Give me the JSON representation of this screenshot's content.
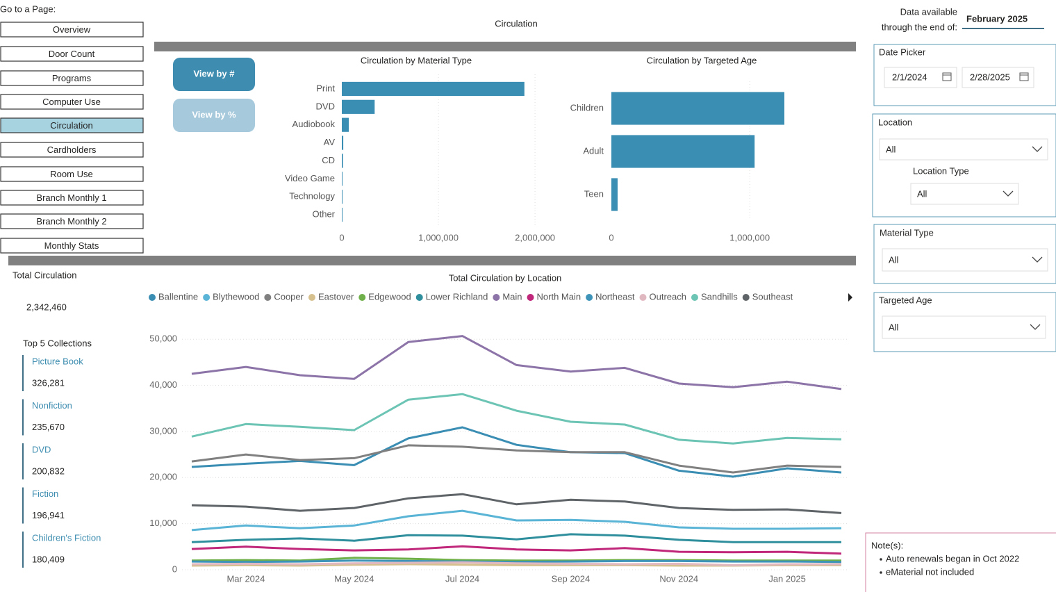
{
  "nav": {
    "title": "Go to a Page:",
    "pages": [
      "Overview",
      "Door Count",
      "Programs",
      "Computer Use",
      "Circulation",
      "Cardholders",
      "Room Use",
      "Branch Monthly 1",
      "Branch Monthly 2",
      "Monthly Stats"
    ],
    "active": 4
  },
  "header": {
    "title": "Circulation",
    "availability_label": [
      "Data available",
      "through the end of:"
    ],
    "availability_value": "February 2025"
  },
  "toggles": [
    "View by #",
    "View by %"
  ],
  "filters": {
    "date_picker": {
      "title": "Date Picker",
      "start": "2/1/2024",
      "end": "2/28/2025"
    },
    "location": {
      "title": "Location",
      "value": "All",
      "type_title": "Location Type",
      "type_value": "All"
    },
    "material_type": {
      "title": "Material Type",
      "value": "All"
    },
    "targeted_age": {
      "title": "Targeted Age",
      "value": "All"
    }
  },
  "kpi": {
    "title": "Total Circulation",
    "value": "2,342,460"
  },
  "top_collections": {
    "title": "Top 5 Collections",
    "items": [
      {
        "name": "Picture Book",
        "value": "326,281"
      },
      {
        "name": "Nonfiction",
        "value": "235,670"
      },
      {
        "name": "DVD",
        "value": "200,832"
      },
      {
        "name": "Fiction",
        "value": "196,941"
      },
      {
        "name": "Children's Fiction",
        "value": "180,409"
      }
    ]
  },
  "notes": {
    "title": "Note(s):",
    "items": [
      "Auto renewals began in Oct 2022",
      "eMaterial not included"
    ]
  },
  "chart_data": [
    {
      "type": "bar",
      "orientation": "horizontal",
      "title": "Circulation by Material Type",
      "color": "#3a8db3",
      "categories": [
        "Print",
        "DVD",
        "Audiobook",
        "AV",
        "CD",
        "Video Game",
        "Technology",
        "Other"
      ],
      "values": [
        1890000,
        340000,
        72000,
        15000,
        12000,
        5000,
        3000,
        2000
      ],
      "xlim": [
        0,
        2100000
      ],
      "xticks": [
        0,
        {
          "value": 1000000,
          "label": "1,000,000"
        },
        {
          "value": 2000000,
          "label": "2,000,000"
        }
      ],
      "grid": true
    },
    {
      "type": "bar",
      "orientation": "horizontal",
      "title": "Circulation by Targeted Age",
      "color": "#3a8db3",
      "categories": [
        "Children",
        "Adult",
        "Teen"
      ],
      "values": [
        1250000,
        1035000,
        45000
      ],
      "xlim": [
        0,
        1260000
      ],
      "xticks": [
        0,
        {
          "value": 1000000,
          "label": "1,000,000"
        }
      ],
      "grid": true
    },
    {
      "type": "line",
      "title": "Total Circulation by Location",
      "categories": [
        null,
        "Mar 2024",
        null,
        "May 2024",
        null,
        "Jul 2024",
        null,
        "Sep 2024",
        null,
        "Nov 2024",
        null,
        "Jan 2025",
        null
      ],
      "ylim": [
        0,
        52000
      ],
      "yticks": [
        0,
        {
          "value": 10000,
          "label": "10,000"
        },
        {
          "value": 20000,
          "label": "20,000"
        },
        {
          "value": 30000,
          "label": "30,000"
        },
        {
          "value": 40000,
          "label": "40,000"
        },
        {
          "value": 50000,
          "label": "50,000"
        }
      ],
      "grid": true,
      "series": [
        {
          "name": "Ballentine",
          "color": "#3a8db3",
          "values": [
            22300,
            23000,
            23600,
            22700,
            28500,
            30900,
            27100,
            25500,
            25300,
            21500,
            20200,
            22000,
            21100
          ]
        },
        {
          "name": "Blythewood",
          "color": "#5ab4d6",
          "values": [
            8600,
            9600,
            9000,
            9600,
            11600,
            12800,
            10700,
            10800,
            10400,
            9200,
            8900,
            8900,
            9000
          ]
        },
        {
          "name": "Cooper",
          "color": "#808080",
          "values": [
            23500,
            25000,
            23800,
            24200,
            27000,
            26700,
            25900,
            25500,
            25500,
            22600,
            21100,
            22600,
            22300
          ]
        },
        {
          "name": "Eastover",
          "color": "#d5c08e",
          "values": [
            900,
            1000,
            900,
            1100,
            1200,
            1100,
            1000,
            1000,
            1000,
            900,
            900,
            1000,
            1000
          ]
        },
        {
          "name": "Edgewood",
          "color": "#6fb04a",
          "values": [
            2000,
            2100,
            2000,
            2600,
            2400,
            2100,
            2000,
            2000,
            2100,
            2100,
            2000,
            2000,
            2000
          ]
        },
        {
          "name": "Lower Richland",
          "color": "#2f8f9d",
          "values": [
            6000,
            6500,
            6800,
            6300,
            7500,
            7400,
            6600,
            7700,
            7400,
            6500,
            6000,
            6000,
            6000
          ]
        },
        {
          "name": "Main",
          "color": "#8d74a8",
          "values": [
            42500,
            44000,
            42200,
            41400,
            49400,
            50700,
            44400,
            43000,
            43800,
            40400,
            39600,
            40800,
            39200
          ]
        },
        {
          "name": "North Main",
          "color": "#c0267a",
          "values": [
            4500,
            5000,
            4500,
            4200,
            4400,
            5100,
            4400,
            4200,
            4700,
            3900,
            3800,
            3900,
            3500
          ]
        },
        {
          "name": "Northeast",
          "color": "#3d94b8",
          "values": [
            1800,
            1700,
            1800,
            2000,
            1900,
            1800,
            1700,
            1800,
            1900,
            1900,
            1800,
            1800,
            1700
          ]
        },
        {
          "name": "Outreach",
          "color": "#e0b8c0",
          "values": [
            1200,
            1300,
            1200,
            1400,
            1500,
            1600,
            1400,
            1300,
            1200,
            1300,
            1000,
            1200,
            1200
          ]
        },
        {
          "name": "Sandhills",
          "color": "#6cc4b4",
          "values": [
            28900,
            31600,
            31000,
            30300,
            36900,
            38100,
            34500,
            32100,
            31500,
            28200,
            27400,
            28600,
            28300
          ]
        },
        {
          "name": "Southeast",
          "color": "#5f6468",
          "values": [
            14000,
            13700,
            12800,
            13400,
            15500,
            16400,
            14200,
            15200,
            14800,
            13400,
            13000,
            13100,
            12300
          ]
        }
      ]
    }
  ]
}
